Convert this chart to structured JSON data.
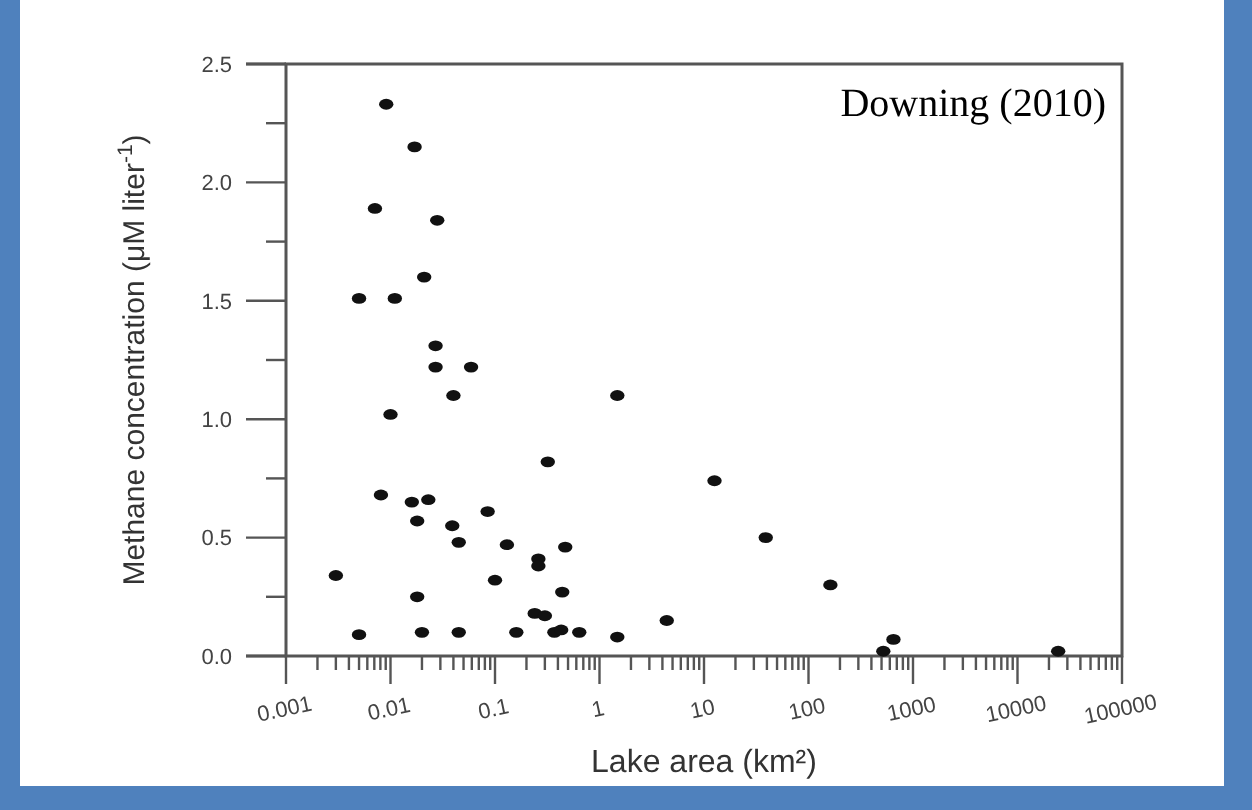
{
  "chart_data": {
    "type": "scatter",
    "xlabel": "Lake area (km²)",
    "ylabel": "Methane concentration (μM liter$^{-1}$)",
    "log": "x",
    "marker": "circle",
    "grid": false,
    "annotations": [
      "Downing (2010)"
    ],
    "xlim": [
      0.001,
      100000
    ],
    "ylim": [
      0,
      2.5
    ],
    "xticks": [
      {
        "value": 0.001,
        "label": "0.001"
      },
      {
        "value": 0.002,
        "label": null
      },
      {
        "value": 0.003,
        "label": null
      },
      {
        "value": 0.004,
        "label": null
      },
      {
        "value": 0.005,
        "label": null
      },
      {
        "value": 0.006,
        "label": null
      },
      {
        "value": 0.007,
        "label": null
      },
      {
        "value": 0.008,
        "label": null
      },
      {
        "value": 0.009,
        "label": null
      },
      {
        "value": 0.01,
        "label": "0.01"
      },
      {
        "value": 0.02,
        "label": null
      },
      {
        "value": 0.03,
        "label": null
      },
      {
        "value": 0.04,
        "label": null
      },
      {
        "value": 0.05,
        "label": null
      },
      {
        "value": 0.06,
        "label": null
      },
      {
        "value": 0.07,
        "label": null
      },
      {
        "value": 0.08,
        "label": null
      },
      {
        "value": 0.09,
        "label": null
      },
      {
        "value": 0.1,
        "label": "0.1"
      },
      {
        "value": 0.2,
        "label": null
      },
      {
        "value": 0.3,
        "label": null
      },
      {
        "value": 0.4,
        "label": null
      },
      {
        "value": 0.5,
        "label": null
      },
      {
        "value": 0.6,
        "label": null
      },
      {
        "value": 0.7,
        "label": null
      },
      {
        "value": 0.8,
        "label": null
      },
      {
        "value": 0.9,
        "label": null
      },
      1,
      {
        "value": 2,
        "label": null
      },
      {
        "value": 3,
        "label": null
      },
      {
        "value": 4,
        "label": null
      },
      {
        "value": 5,
        "label": null
      },
      {
        "value": 6,
        "label": null
      },
      {
        "value": 7,
        "label": null
      },
      {
        "value": 8,
        "label": null
      },
      {
        "value": 9,
        "label": null
      },
      10,
      {
        "value": 20,
        "label": null
      },
      {
        "value": 30,
        "label": null
      },
      {
        "value": 40,
        "label": null
      },
      {
        "value": 50,
        "label": null
      },
      {
        "value": 60,
        "label": null
      },
      {
        "value": 70,
        "label": null
      },
      {
        "value": 80,
        "label": null
      },
      {
        "value": 90,
        "label": null
      },
      100,
      {
        "value": 200,
        "label": null
      },
      {
        "value": 300,
        "label": null
      },
      {
        "value": 400,
        "label": null
      },
      {
        "value": 500,
        "label": null
      },
      {
        "value": 600,
        "label": null
      },
      {
        "value": 700,
        "label": null
      },
      {
        "value": 800,
        "label": null
      },
      {
        "value": 900,
        "label": null
      },
      1000,
      {
        "value": 2000,
        "label": null
      },
      {
        "value": 3000,
        "label": null
      },
      {
        "value": 4000,
        "label": null
      },
      {
        "value": 5000,
        "label": null
      },
      {
        "value": 6000,
        "label": null
      },
      {
        "value": 7000,
        "label": null
      },
      {
        "value": 8000,
        "label": null
      },
      {
        "value": 9000,
        "label": null
      },
      10000,
      {
        "value": 20000,
        "label": null
      },
      {
        "value": 30000,
        "label": null
      },
      {
        "value": 40000,
        "label": null
      },
      {
        "value": 50000,
        "label": null
      },
      {
        "value": 60000,
        "label": null
      },
      {
        "value": 70000,
        "label": null
      },
      {
        "value": 80000,
        "label": null
      },
      {
        "value": 90000,
        "label": null
      },
      100000
    ],
    "yticks": [
      {
        "value": 0,
        "label": "0.0"
      },
      {
        "value": 0.25,
        "label": null
      },
      {
        "value": 0.5,
        "label": "0.5"
      },
      {
        "value": 0.75,
        "label": null
      },
      {
        "value": 1,
        "label": "1.0"
      },
      {
        "value": 1.25,
        "label": null
      },
      {
        "value": 1.5,
        "label": "1.5"
      },
      {
        "value": 1.75,
        "label": null
      },
      {
        "value": 2,
        "label": "2.0"
      },
      {
        "value": 2.25,
        "label": null
      },
      {
        "value": 2.5,
        "label": "2.5"
      }
    ],
    "series": [
      {
        "color": "#111111",
        "x": [
          0.0091,
          0.017,
          0.0071,
          0.028,
          0.021,
          0.005,
          0.011,
          0.027,
          0.027,
          0.059,
          0.04,
          0.01,
          1.48,
          0.32,
          12.6,
          0.0081,
          0.016,
          0.023,
          0.018,
          0.039,
          0.085,
          0.045,
          0.13,
          0.47,
          0.26,
          0.26,
          0.003,
          0.1,
          0.018,
          0.44,
          0.24,
          0.3,
          0.005,
          0.02,
          0.045,
          0.16,
          0.37,
          0.43,
          0.64,
          1.48,
          4.4,
          39,
          162,
          520,
          650,
          24500
        ],
        "values": [
          2.33,
          2.15,
          1.89,
          1.84,
          1.6,
          1.51,
          1.51,
          1.31,
          1.22,
          1.22,
          1.1,
          1.02,
          1.1,
          0.82,
          0.74,
          0.68,
          0.65,
          0.66,
          0.57,
          0.55,
          0.61,
          0.48,
          0.47,
          0.46,
          0.41,
          0.38,
          0.34,
          0.32,
          0.25,
          0.27,
          0.18,
          0.17,
          0.09,
          0.1,
          0.1,
          0.1,
          0.1,
          0.11,
          0.1,
          0.08,
          0.15,
          0.5,
          0.3,
          0.02,
          0.07,
          0.02
        ]
      }
    ]
  }
}
